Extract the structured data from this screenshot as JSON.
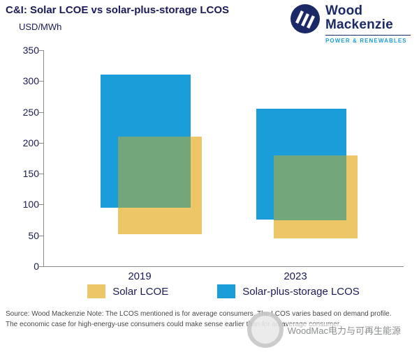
{
  "header": {
    "title": "C&I: Solar LCOE vs solar-plus-storage LCOS",
    "unit_label": "USD/MWh"
  },
  "logo": {
    "line1": "Wood",
    "line2": "Mackenzie",
    "tagline": "POWER & RENEWABLES"
  },
  "chart_data": {
    "type": "bar",
    "subtype": "floating-range-bars-with-overlap",
    "title": "C&I: Solar LCOE vs solar-plus-storage LCOS",
    "ylabel": "USD/MWh",
    "categories": [
      "2019",
      "2023"
    ],
    "series": [
      {
        "name": "Solar LCOE",
        "color": "#ecc667",
        "ranges": [
          [
            52,
            210
          ],
          [
            45,
            180
          ]
        ]
      },
      {
        "name": "Solar-plus-storage LCOS",
        "color": "#1b9dd9",
        "ranges": [
          [
            95,
            310
          ],
          [
            75,
            255
          ]
        ]
      }
    ],
    "overlap_color": "#74a67c",
    "ylim": [
      0,
      350
    ],
    "yticks": [
      0,
      50,
      100,
      150,
      200,
      250,
      300,
      350
    ],
    "grid": false,
    "legend_position": "bottom"
  },
  "legend": {
    "items": [
      {
        "label": "Solar LCOE",
        "color": "#ecc667"
      },
      {
        "label": "Solar-plus-storage LCOS",
        "color": "#1b9dd9"
      }
    ]
  },
  "footer": {
    "source_text": "Source: Wood Mackenzie Note: The LCOS mentioned is for average consumers. The LCOS varies based on demand profile. The economic case for high-energy-use consumers could make sense earlier than for an average consumer."
  },
  "watermark": {
    "text": "WoodMac电力与可再生能源"
  }
}
